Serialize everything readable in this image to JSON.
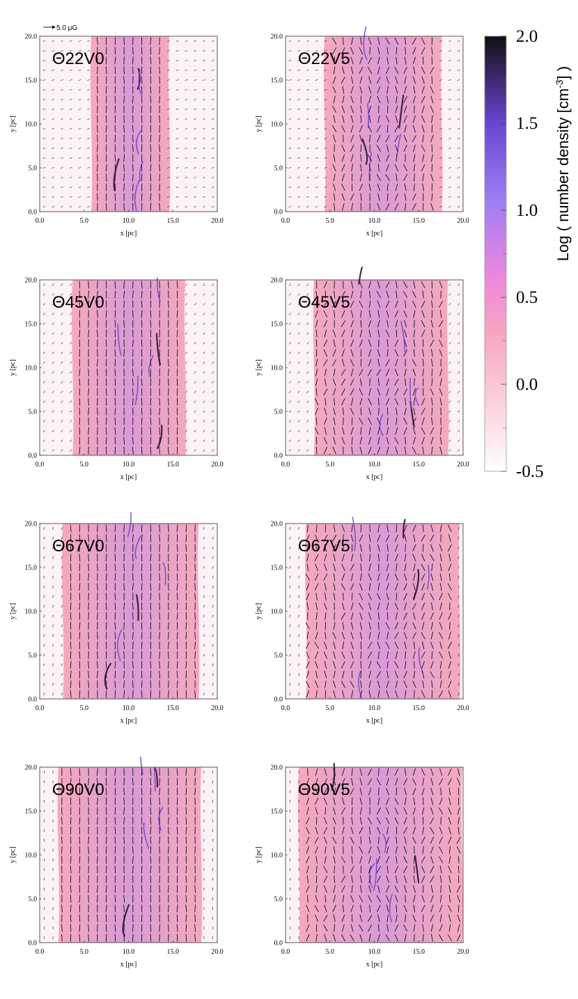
{
  "scale_label": "5.0 μG",
  "chart_data": {
    "type": "heatmap",
    "description_units": {
      "xlabel": "x [pc]",
      "ylabel": "y [pc]"
    },
    "xlim": [
      0,
      20
    ],
    "ylim": [
      0,
      20
    ],
    "ticks": [
      "0.0",
      "5.0",
      "10.0",
      "15.0",
      "20.0"
    ],
    "colorbar": {
      "label": "Log ( number density [cm",
      "label_sup": "-3",
      "label_tail": "] )",
      "min": -0.5,
      "max": 2.0,
      "ticks": [
        "2.0",
        "1.5",
        "1.0",
        "0.5",
        "0.0",
        "-0.5"
      ],
      "colors": [
        "#ffffff",
        "#fbd0da",
        "#f6a6c0",
        "#ee88dc",
        "#a07ef4",
        "#6c44d2",
        "#101010"
      ]
    },
    "panels": [
      {
        "title": "Θ22V0",
        "slab_x": [
          5.8,
          14.6
        ],
        "theta_deg": 22,
        "velocity": 0
      },
      {
        "title": "Θ22V5",
        "slab_x": [
          4.4,
          17.6
        ],
        "theta_deg": 22,
        "velocity": 5
      },
      {
        "title": "Θ45V0",
        "slab_x": [
          3.7,
          16.4
        ],
        "theta_deg": 45,
        "velocity": 0
      },
      {
        "title": "Θ45V5",
        "slab_x": [
          3.2,
          18.3
        ],
        "theta_deg": 45,
        "velocity": 5
      },
      {
        "title": "Θ67V0",
        "slab_x": [
          2.6,
          17.9
        ],
        "theta_deg": 67,
        "velocity": 0
      },
      {
        "title": "Θ67V5",
        "slab_x": [
          2.3,
          19.6
        ],
        "theta_deg": 67,
        "velocity": 5
      },
      {
        "title": "Θ90V0",
        "slab_x": [
          2.1,
          18.2
        ],
        "theta_deg": 90,
        "velocity": 0
      },
      {
        "title": "Θ90V5",
        "slab_x": [
          1.5,
          19.9
        ],
        "theta_deg": 90,
        "velocity": 5
      }
    ]
  }
}
